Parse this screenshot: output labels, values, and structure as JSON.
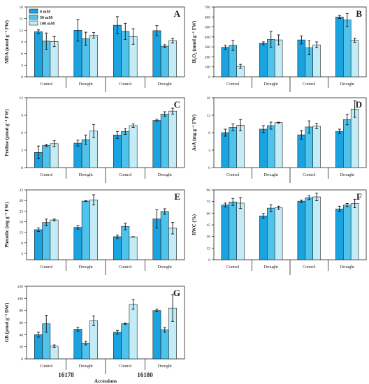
{
  "figure": {
    "accessions_label": "Accessions",
    "legend": [
      "0 mM",
      "50 mM",
      "100 mM"
    ],
    "groups": [
      "Control",
      "Drought",
      "Control",
      "Drought"
    ],
    "accessions": [
      "16178",
      "16180"
    ],
    "colors": {
      "0 mM": "#1aa3df",
      "50 mM": "#4fc3ec",
      "100 mM": "#c3ecf7"
    }
  },
  "chart_data": [
    {
      "panel": "A",
      "type": "bar",
      "ylabel": "MDA (nmol g⁻¹ FW)",
      "ylim": [
        0,
        18
      ],
      "yticks": [
        0,
        3,
        6,
        9,
        12,
        15,
        18
      ],
      "categories": [
        "Control",
        "Drought",
        "Control",
        "Drought"
      ],
      "series": [
        {
          "name": "0 mM",
          "values": [
            11.6,
            12.0,
            13.3,
            11.9
          ],
          "errors": [
            0.5,
            2.8,
            2.2,
            1.3
          ]
        },
        {
          "name": "50 mM",
          "values": [
            9.2,
            9.8,
            11.7,
            7.9
          ],
          "errors": [
            2.1,
            1.7,
            2.1,
            0.4
          ]
        },
        {
          "name": "100 mM",
          "values": [
            9.1,
            10.7,
            10.4,
            9.3
          ],
          "errors": [
            1.3,
            0.7,
            2.0,
            0.6
          ]
        }
      ]
    },
    {
      "panel": "B",
      "type": "bar",
      "ylabel": "H₂O₂ (nmol g⁻¹ FW)",
      "ylim": [
        0,
        700
      ],
      "yticks": [
        0,
        100,
        200,
        300,
        400,
        500,
        600,
        700
      ],
      "categories": [
        "Control",
        "Drought",
        "Control",
        "Drought"
      ],
      "series": [
        {
          "name": "0 mM",
          "values": [
            295,
            335,
            370,
            600
          ],
          "errors": [
            20,
            15,
            40,
            15
          ]
        },
        {
          "name": "50 mM",
          "values": [
            315,
            375,
            290,
            570
          ],
          "errors": [
            50,
            80,
            70,
            65
          ]
        },
        {
          "name": "100 mM",
          "values": [
            105,
            370,
            320,
            365
          ],
          "errors": [
            20,
            50,
            30,
            20
          ]
        }
      ]
    },
    {
      "panel": "C",
      "type": "bar",
      "ylabel": "Proline (μmol g⁻¹ FW)",
      "ylim": [
        0,
        12
      ],
      "yticks": [
        0,
        3,
        6,
        9,
        12
      ],
      "categories": [
        "Control",
        "Drought",
        "Control",
        "Drought"
      ],
      "series": [
        {
          "name": "0 mM",
          "values": [
            2.6,
            4.2,
            5.6,
            8.1
          ],
          "errors": [
            1.1,
            0.5,
            0.6,
            0.2
          ]
        },
        {
          "name": "50 mM",
          "values": [
            3.8,
            4.8,
            6.2,
            9.2
          ],
          "errors": [
            0.2,
            0.8,
            0.5,
            0.4
          ]
        },
        {
          "name": "100 mM",
          "values": [
            4.1,
            6.3,
            7.2,
            9.7
          ],
          "errors": [
            0.5,
            1.1,
            0.3,
            0.5
          ]
        }
      ]
    },
    {
      "panel": "D",
      "type": "bar",
      "ylabel": "AsA (mg g⁻¹ FW)",
      "ylim": [
        0,
        16
      ],
      "yticks": [
        0,
        4,
        8,
        12,
        16
      ],
      "categories": [
        "Control",
        "Drought",
        "Control",
        "Drought"
      ],
      "series": [
        {
          "name": "0 mM",
          "values": [
            8.0,
            8.8,
            7.5,
            8.3
          ],
          "errors": [
            0.8,
            0.8,
            1.0,
            0.5
          ]
        },
        {
          "name": "50 mM",
          "values": [
            9.2,
            9.6,
            9.3,
            11.0
          ],
          "errors": [
            0.8,
            0.8,
            1.4,
            1.2
          ]
        },
        {
          "name": "100 mM",
          "values": [
            9.7,
            10.3,
            9.5,
            13.4
          ],
          "errors": [
            1.3,
            0.1,
            0.6,
            1.9
          ]
        }
      ]
    },
    {
      "panel": "E",
      "type": "bar",
      "ylabel": "Phenolic (mg g⁻¹ FW)",
      "ylim": [
        0,
        33
      ],
      "yticks": [
        3,
        8,
        13,
        18,
        23,
        28,
        33
      ],
      "categories": [
        "Control",
        "Drought",
        "Control",
        "Drought"
      ],
      "series": [
        {
          "name": "0 mM",
          "values": [
            14.2,
            15.3,
            10.9,
            19.3
          ],
          "errors": [
            0.8,
            0.8,
            0.7,
            4.3
          ]
        },
        {
          "name": "50 mM",
          "values": [
            17.6,
            27.7,
            15.7,
            22.8
          ],
          "errors": [
            1.6,
            0.2,
            1.6,
            1.3
          ]
        },
        {
          "name": "100 mM",
          "values": [
            18.8,
            28.3,
            10.8,
            14.9
          ],
          "errors": [
            0.4,
            2.4,
            0.1,
            2.7
          ]
        }
      ]
    },
    {
      "panel": "F",
      "type": "bar",
      "ylabel": "RWC (%)",
      "ylim": [
        0,
        90
      ],
      "yticks": [
        0,
        15,
        30,
        45,
        60,
        75,
        90
      ],
      "categories": [
        "Control",
        "Drought",
        "Control",
        "Drought"
      ],
      "series": [
        {
          "name": "0 mM",
          "values": [
            70.5,
            56.5,
            75.5,
            65.5
          ],
          "errors": [
            2.5,
            3.0,
            1.5,
            3.5
          ]
        },
        {
          "name": "50 mM",
          "values": [
            74.5,
            66.5,
            80.0,
            70.5
          ],
          "errors": [
            4.5,
            4.5,
            2.5,
            2.0
          ]
        },
        {
          "name": "100 mM",
          "values": [
            73.0,
            67.0,
            81.0,
            72.5
          ],
          "errors": [
            7.0,
            2.0,
            5.0,
            5.5
          ]
        }
      ]
    },
    {
      "panel": "G",
      "type": "bar",
      "ylabel": "GB (μmol g⁻¹ DW)",
      "ylim": [
        0,
        120
      ],
      "yticks": [
        0,
        20,
        40,
        60,
        80,
        100,
        120
      ],
      "categories": [
        "Control",
        "Drought",
        "Control",
        "Drought"
      ],
      "series": [
        {
          "name": "0 mM",
          "values": [
            40,
            49,
            44,
            80
          ],
          "errors": [
            4,
            3,
            3,
            2
          ]
        },
        {
          "name": "50 mM",
          "values": [
            58,
            26,
            58,
            48
          ],
          "errors": [
            14,
            3,
            1,
            4
          ]
        },
        {
          "name": "100 mM",
          "values": [
            21,
            63,
            90,
            84
          ],
          "errors": [
            2,
            8,
            8,
            22
          ]
        }
      ]
    }
  ]
}
